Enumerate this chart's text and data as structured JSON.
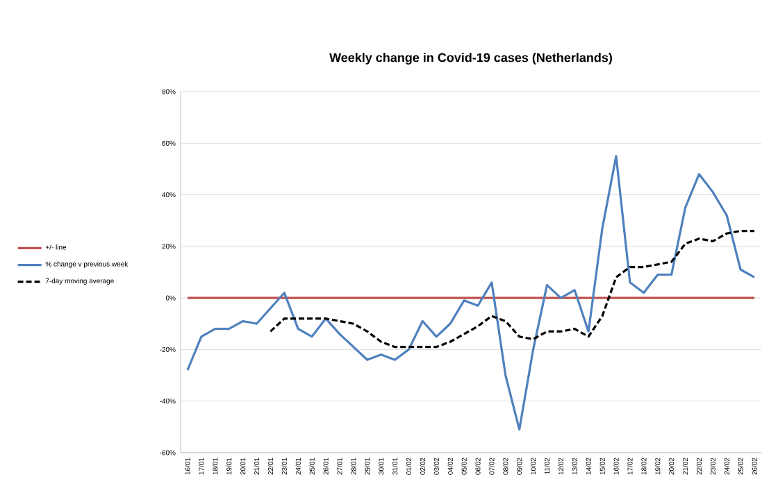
{
  "chart_data": {
    "type": "line",
    "title": "Weekly change in Covid-19 cases (Netherlands)",
    "categories": [
      "16/01",
      "17/01",
      "18/01",
      "19/01",
      "20/01",
      "21/01",
      "22/01",
      "23/01",
      "24/01",
      "25/01",
      "26/01",
      "27/01",
      "28/01",
      "29/01",
      "30/01",
      "31/01",
      "01/02",
      "02/02",
      "03/02",
      "04/02",
      "05/02",
      "06/02",
      "07/02",
      "08/02",
      "09/02",
      "10/02",
      "11/02",
      "12/02",
      "13/02",
      "14/02",
      "15/02",
      "16/02",
      "17/02",
      "18/02",
      "19/02",
      "20/02",
      "21/02",
      "22/02",
      "23/02",
      "24/02",
      "25/02",
      "26/02"
    ],
    "series": [
      {
        "name": "+/- line",
        "color": "#c0504d",
        "line_style": "solid",
        "values": [
          0,
          0,
          0,
          0,
          0,
          0,
          0,
          0,
          0,
          0,
          0,
          0,
          0,
          0,
          0,
          0,
          0,
          0,
          0,
          0,
          0,
          0,
          0,
          0,
          0,
          0,
          0,
          0,
          0,
          0,
          0,
          0,
          0,
          0,
          0,
          0,
          0,
          0,
          0,
          0,
          0,
          0
        ]
      },
      {
        "name": "% change v previous week",
        "color": "#4f81bd",
        "line_style": "solid",
        "values": [
          -28,
          -15,
          -12,
          -12,
          -9,
          -10,
          -4,
          2,
          -12,
          -15,
          -8,
          -14,
          -19,
          -24,
          -22,
          -24,
          -20,
          -9,
          -15,
          -10,
          -1,
          -3,
          6,
          -30,
          -51,
          -20,
          5,
          0,
          3,
          -13,
          27,
          55,
          6,
          2,
          9,
          9,
          35,
          48,
          41,
          32,
          11,
          8
        ]
      },
      {
        "name": "7-day moving average",
        "color": "#000000",
        "line_style": "dashed",
        "values": [
          null,
          null,
          null,
          null,
          null,
          null,
          -13,
          -8,
          -8,
          -8,
          -8,
          -9,
          -10,
          -13,
          -17,
          -19,
          -19,
          -19,
          -19,
          -17,
          -14,
          -11,
          -7,
          -9,
          -15,
          -16,
          -13,
          -13,
          -12,
          -15,
          -7,
          8,
          12,
          12,
          13,
          14,
          21,
          23,
          22,
          25,
          26,
          26
        ]
      }
    ],
    "ylim": [
      -60,
      80
    ],
    "yticks": [
      {
        "value": -60,
        "label": "-60%"
      },
      {
        "value": -40,
        "label": "-40%"
      },
      {
        "value": -20,
        "label": "-20%"
      },
      {
        "value": 0,
        "label": "0%"
      },
      {
        "value": 20,
        "label": "20%"
      },
      {
        "value": 40,
        "label": "40%"
      },
      {
        "value": 60,
        "label": "60%"
      },
      {
        "value": 80,
        "label": "80%"
      }
    ],
    "grid": "y",
    "legend": "left",
    "marker": "none"
  }
}
